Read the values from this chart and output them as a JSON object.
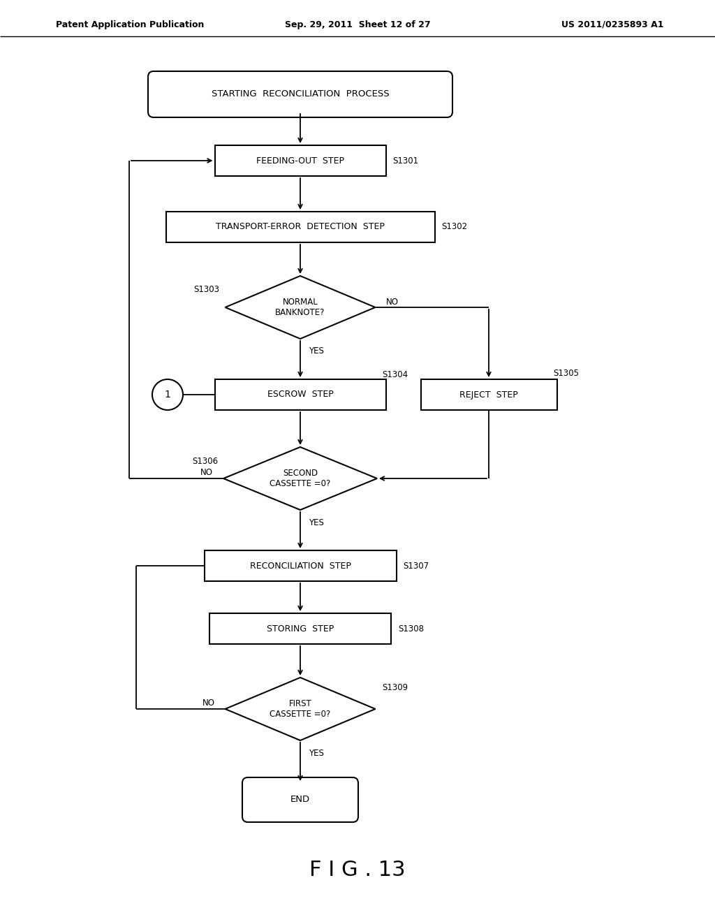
{
  "bg_color": "#ffffff",
  "header_left": "Patent Application Publication",
  "header_mid": "Sep. 29, 2011  Sheet 12 of 27",
  "header_right": "US 2011/0235893 A1",
  "figure_label": "F I G . 13"
}
